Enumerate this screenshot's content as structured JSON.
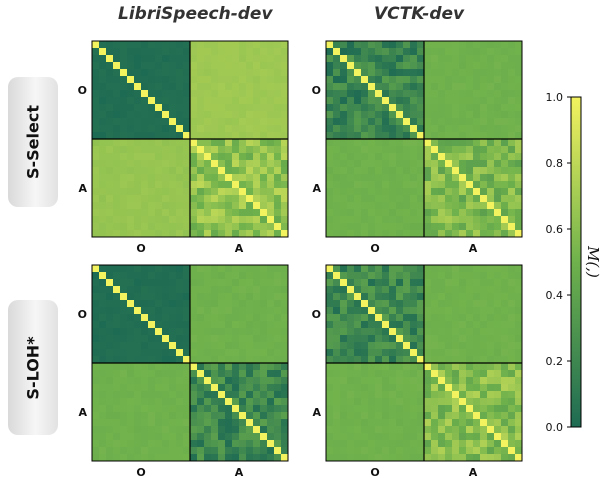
{
  "columns": [
    "LibriSpeech-dev",
    "VCTK-dev"
  ],
  "rows": [
    "S-Select",
    "S-LOH*"
  ],
  "colorbar": {
    "label": "M(,)",
    "ticks": [
      "1.0",
      "0.8",
      "0.6",
      "0.4",
      "0.2",
      "0.0"
    ],
    "colors": {
      "low": "#1e6b53",
      "mid": "#6fb14c",
      "high": "#f3f25f"
    }
  },
  "chart_data": [
    {
      "type": "heatmap",
      "row": "S-Select",
      "column": "LibriSpeech-dev",
      "categories": [
        "O",
        "A"
      ],
      "block_values": {
        "O-O": 0.02,
        "O-A": 0.68,
        "A-O": 0.65,
        "A-A": 0.62
      },
      "diagonal": 1.0
    },
    {
      "type": "heatmap",
      "row": "S-Select",
      "column": "VCTK-dev",
      "categories": [
        "O",
        "A"
      ],
      "block_values": {
        "O-O": 0.18,
        "O-A": 0.5,
        "A-O": 0.5,
        "A-A": 0.55
      },
      "diagonal": 1.0
    },
    {
      "type": "heatmap",
      "row": "S-LOH*",
      "column": "LibriSpeech-dev",
      "categories": [
        "O",
        "A"
      ],
      "block_values": {
        "O-O": 0.02,
        "O-A": 0.5,
        "A-O": 0.5,
        "A-A": 0.2
      },
      "diagonal": 1.0
    },
    {
      "type": "heatmap",
      "row": "S-LOH*",
      "column": "VCTK-dev",
      "categories": [
        "O",
        "A"
      ],
      "block_values": {
        "O-O": 0.2,
        "O-A": 0.5,
        "A-O": 0.5,
        "A-A": 0.58
      },
      "diagonal": 1.0
    }
  ]
}
